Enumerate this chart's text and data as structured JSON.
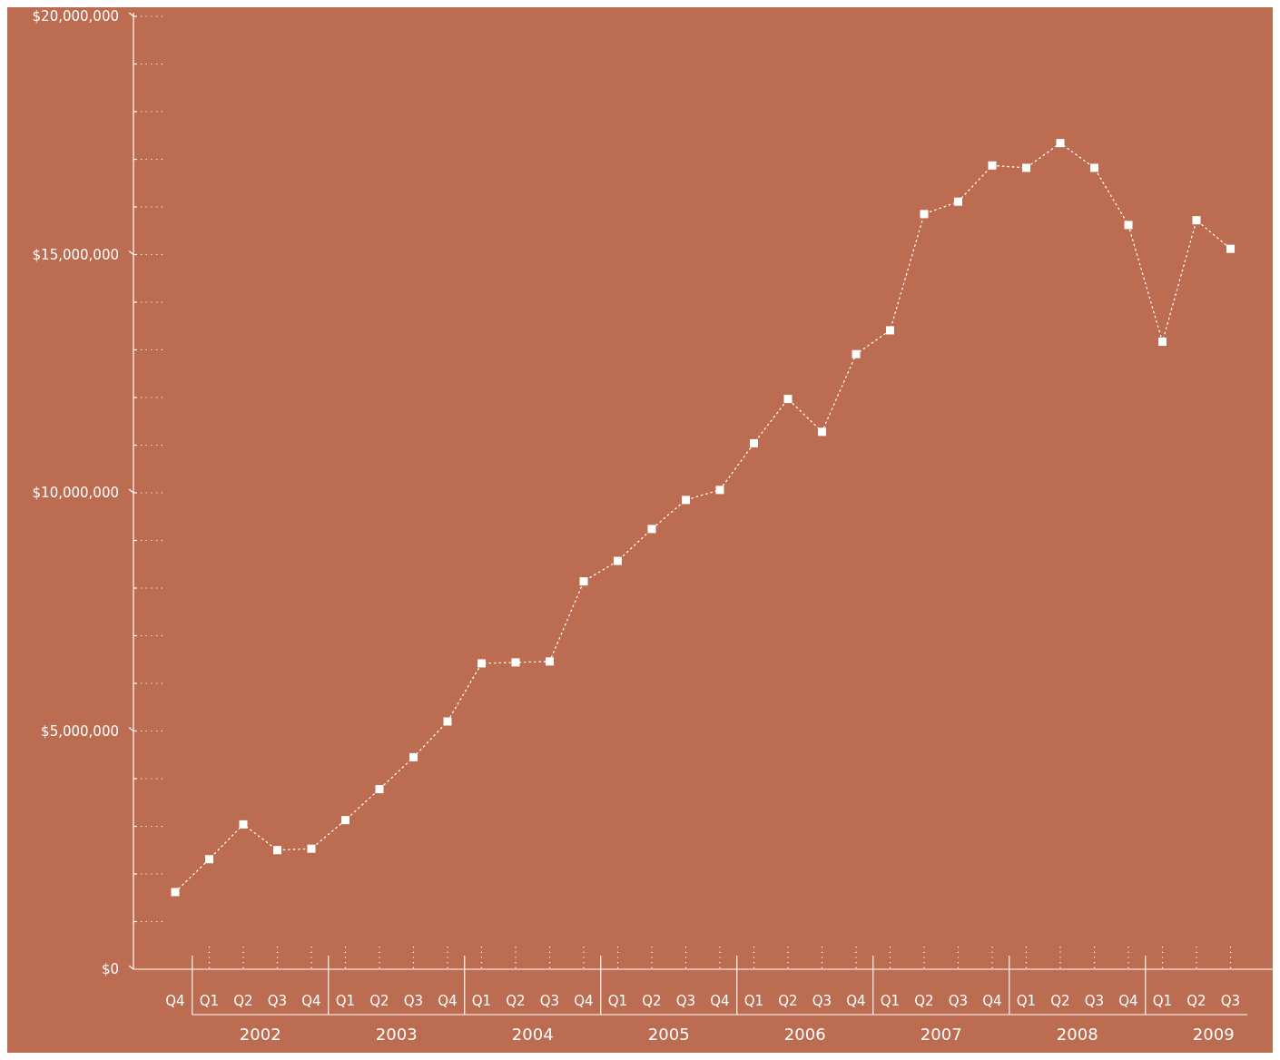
{
  "chart_data": {
    "type": "line",
    "categories": [
      "Q4",
      "Q1",
      "Q2",
      "Q3",
      "Q4",
      "Q1",
      "Q2",
      "Q3",
      "Q4",
      "Q1",
      "Q2",
      "Q3",
      "Q4",
      "Q1",
      "Q2",
      "Q3",
      "Q4",
      "Q1",
      "Q2",
      "Q3",
      "Q4",
      "Q1",
      "Q2",
      "Q3",
      "Q4",
      "Q1",
      "Q2",
      "Q3",
      "Q4",
      "Q1",
      "Q2",
      "Q3"
    ],
    "series": [
      {
        "color": "#ffffff",
        "values": [
          1620000,
          2310000,
          3040000,
          2500000,
          2530000,
          3130000,
          3780000,
          4450000,
          5200000,
          6420000,
          6440000,
          6460000,
          8140000,
          8570000,
          9240000,
          9850000,
          10060000,
          11040000,
          11970000,
          11280000,
          12910000,
          13410000,
          15850000,
          16110000,
          16870000,
          16820000,
          17340000,
          16820000,
          15620000,
          13170000,
          15720000,
          15120000
        ]
      }
    ],
    "annotations": [
      "2002",
      "2003",
      "2004",
      "2005",
      "2006",
      "2007",
      "2008",
      "2009"
    ],
    "ylim": [
      0,
      20000000
    ],
    "yticks": [
      {
        "value": 0,
        "label": "$0"
      },
      {
        "value": 1000000,
        "label": null
      },
      {
        "value": 2000000,
        "label": null
      },
      {
        "value": 3000000,
        "label": null
      },
      {
        "value": 4000000,
        "label": null
      },
      {
        "value": 5000000,
        "label": "$5,000,000"
      },
      {
        "value": 6000000,
        "label": null
      },
      {
        "value": 7000000,
        "label": null
      },
      {
        "value": 8000000,
        "label": null
      },
      {
        "value": 9000000,
        "label": null
      },
      {
        "value": 10000000,
        "label": "$10,000,000"
      },
      {
        "value": 11000000,
        "label": null
      },
      {
        "value": 12000000,
        "label": null
      },
      {
        "value": 13000000,
        "label": null
      },
      {
        "value": 14000000,
        "label": null
      },
      {
        "value": 15000000,
        "label": "$15,000,000"
      },
      {
        "value": 16000000,
        "label": null
      },
      {
        "value": 17000000,
        "label": null
      },
      {
        "value": 18000000,
        "label": null
      },
      {
        "value": 19000000,
        "label": null
      },
      {
        "value": 20000000,
        "label": "$20,000,000"
      }
    ],
    "marker": "square",
    "line_style": "dotted",
    "grid": false
  }
}
